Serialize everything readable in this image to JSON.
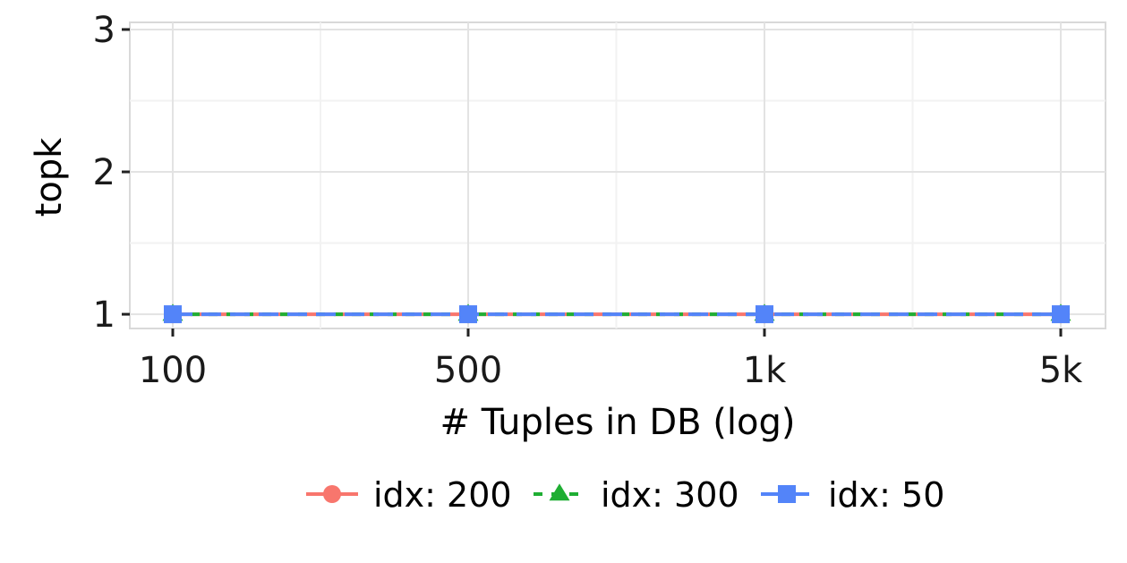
{
  "chart_data": {
    "type": "line",
    "x_categories": [
      "100",
      "500",
      "1k",
      "5k"
    ],
    "xlabel": "# Tuples in DB (log)",
    "ylabel": "topk",
    "ylim": [
      0.9,
      3.05
    ],
    "yticks": [
      1,
      2,
      3
    ],
    "grid": true,
    "legend_position": "bottom",
    "series": [
      {
        "name": "idx: 200",
        "values": [
          1,
          1,
          1,
          1
        ],
        "color": "#F8766D",
        "marker": "circle",
        "dash": "solid"
      },
      {
        "name": "idx: 300",
        "values": [
          1,
          1,
          1,
          1
        ],
        "color": "#1FAE33",
        "marker": "triangle",
        "dash": "dashed"
      },
      {
        "name": "idx: 50",
        "values": [
          1,
          1,
          1,
          1
        ],
        "color": "#5384F9",
        "marker": "square",
        "dash": "longdash"
      }
    ]
  }
}
